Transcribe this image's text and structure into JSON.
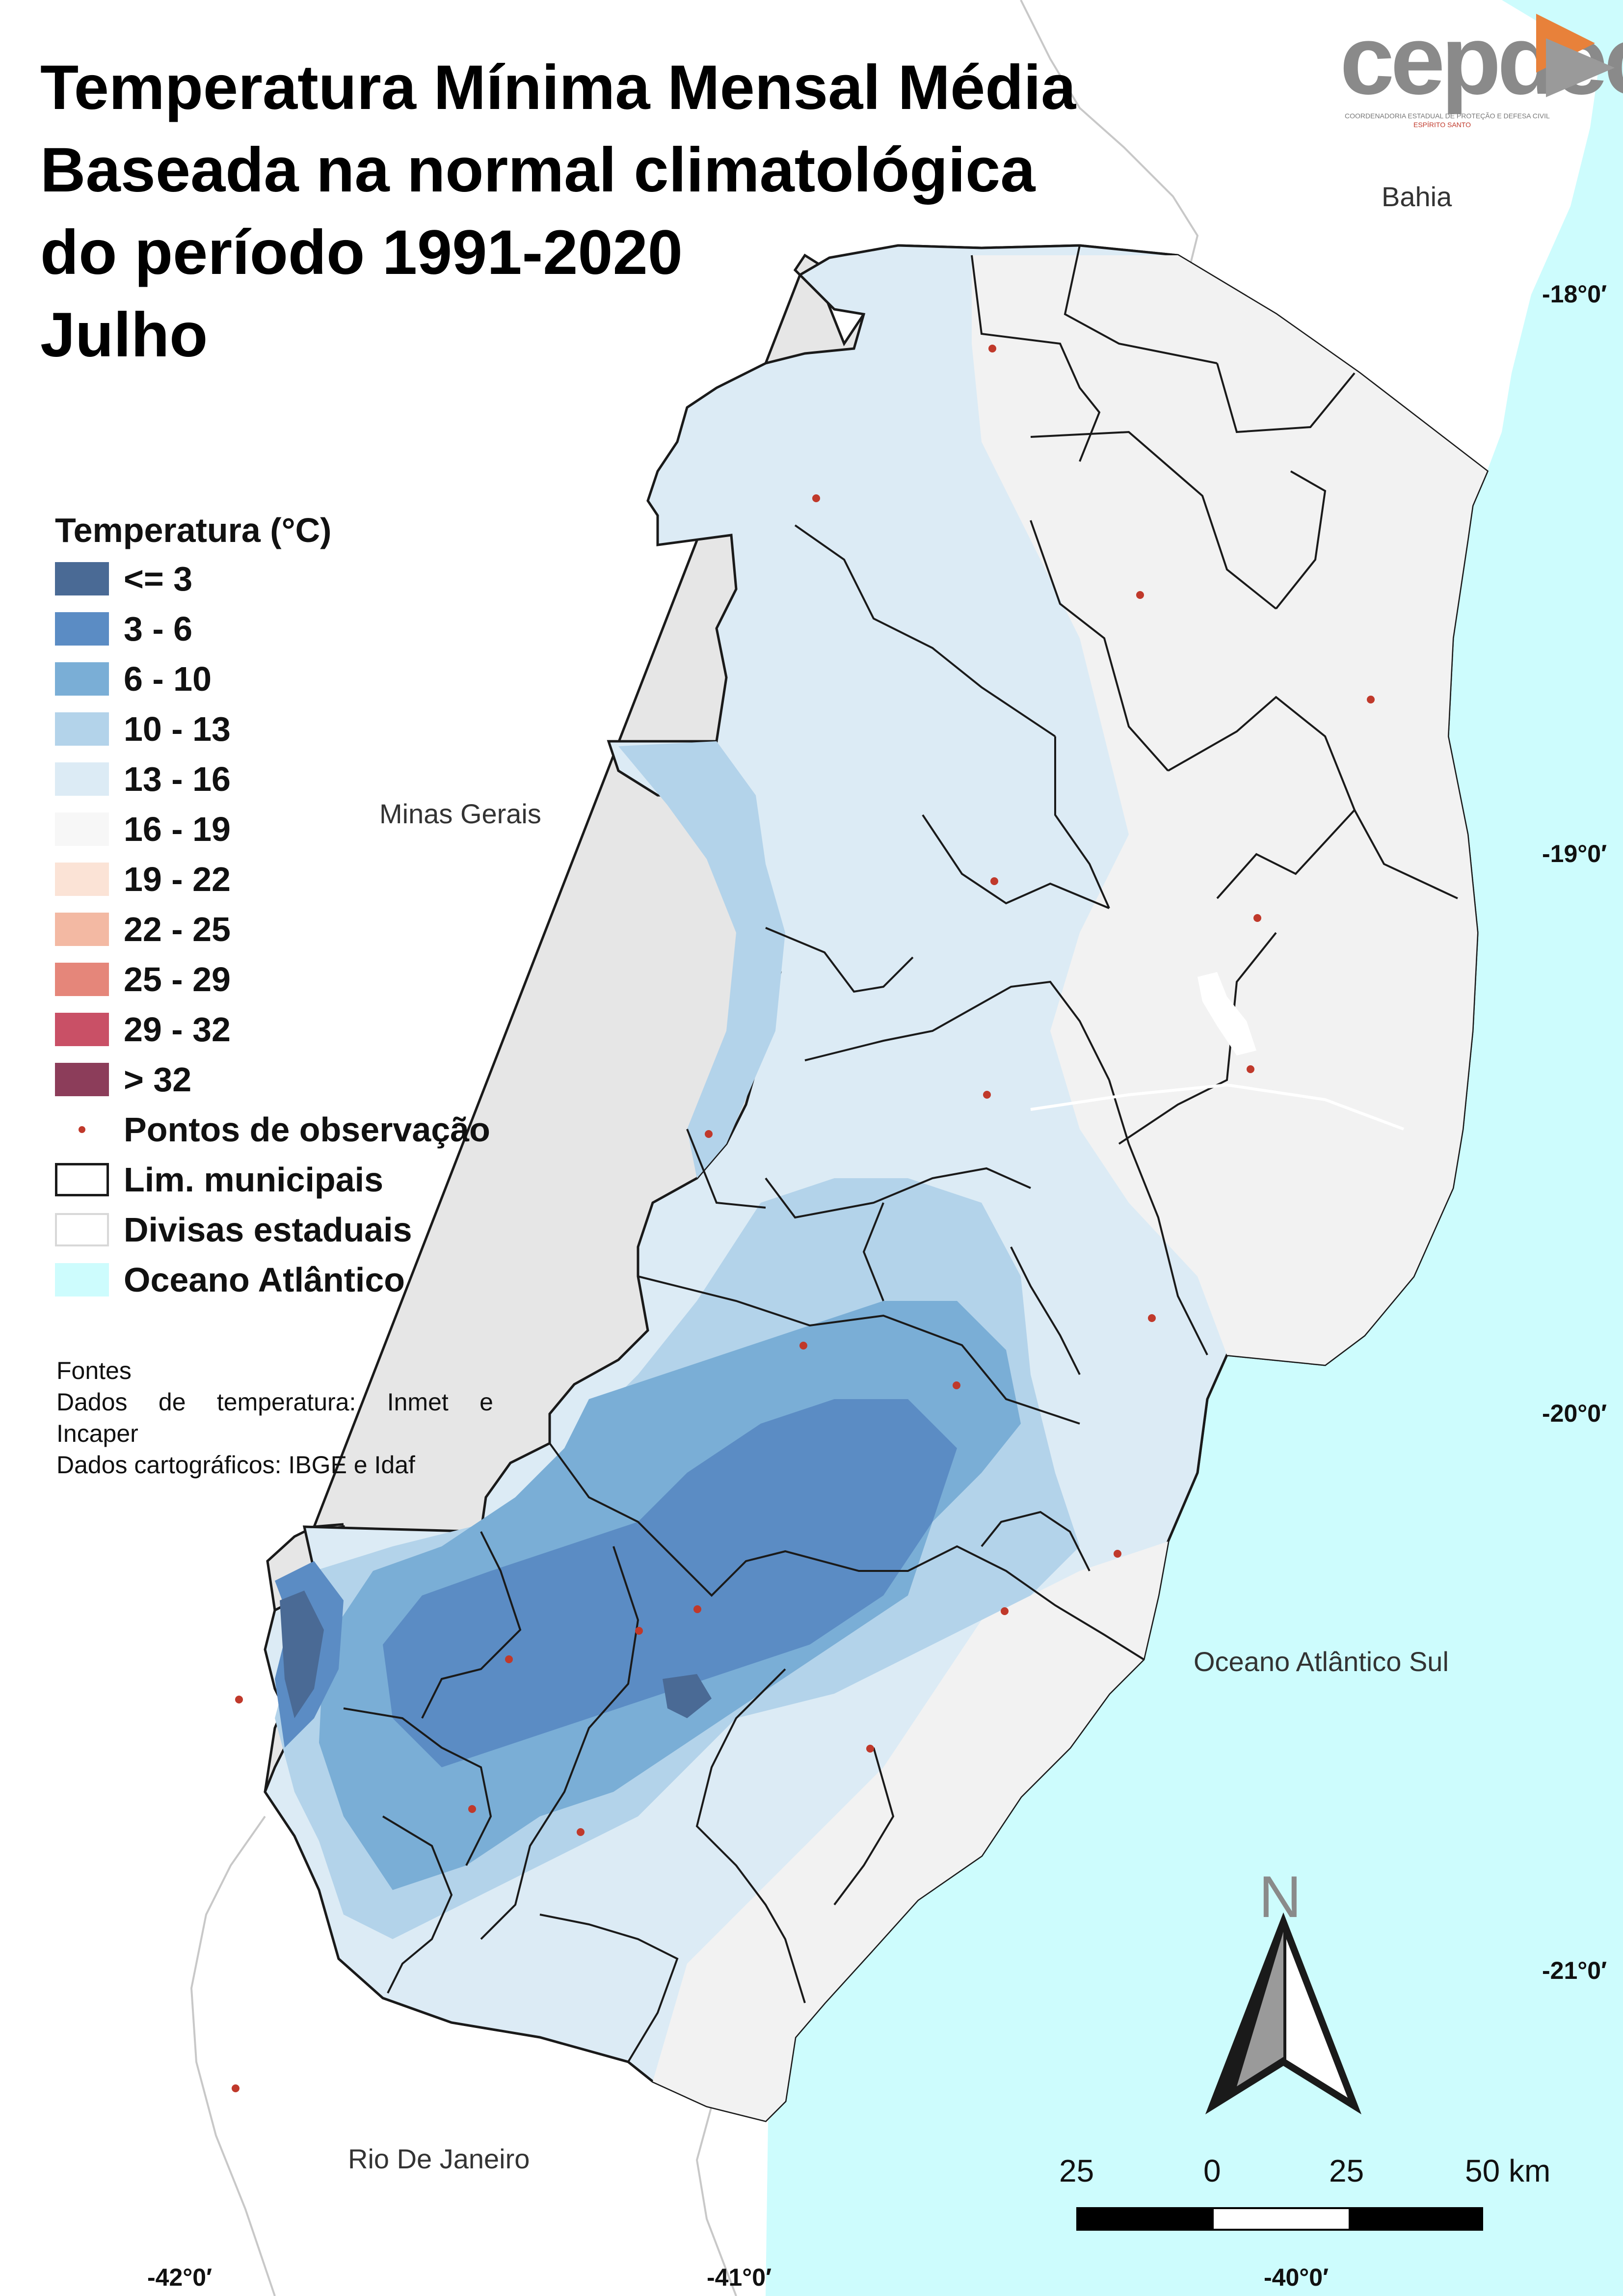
{
  "title": {
    "line1": "Temperatura Mínima Mensal Média",
    "line2": "Baseada na normal climatológica",
    "line3": "do período 1991-2020",
    "line4": "Julho"
  },
  "logo": {
    "text": "cepdec",
    "subtitle": "COORDENADORIA ESTADUAL DE PROTEÇÃO E DEFESA CIVIL",
    "region": "ESPÍRITO SANTO"
  },
  "regions": {
    "bahia": "Bahia",
    "minas_gerais": "Minas Gerais",
    "rio_de_janeiro": "Rio De Janeiro",
    "ocean": "Oceano Atlântico Sul"
  },
  "coordinates": {
    "lat_18": "-18°0′",
    "lat_19": "-19°0′",
    "lat_20": "-20°0′",
    "lat_21": "-21°0′",
    "lon_42": "-42°0′",
    "lon_41": "-41°0′",
    "lon_40": "-40°0′"
  },
  "legend": {
    "title": "Temperatura (°C)",
    "classes": [
      {
        "label": "<= 3",
        "color": "#4a6a95"
      },
      {
        "label": "3 - 6",
        "color": "#5b8cc4"
      },
      {
        "label": "6 - 10",
        "color": "#7aaed6"
      },
      {
        "label": "10 - 13",
        "color": "#b3d3ea"
      },
      {
        "label": "13 - 16",
        "color": "#dcebf5"
      },
      {
        "label": "16 - 19",
        "color": "#f7f7f7"
      },
      {
        "label": "19 - 22",
        "color": "#fbe3d6"
      },
      {
        "label": "22 - 25",
        "color": "#f3b9a3"
      },
      {
        "label": "25 - 29",
        "color": "#e5867a"
      },
      {
        "label": "29 - 32",
        "color": "#c95066"
      },
      {
        "label": "> 32",
        "color": "#8c3d5a"
      }
    ],
    "observation_points": "Pontos de observação",
    "municipal_limits": "Lim. municipais",
    "state_borders": "Divisas estaduais",
    "ocean": "Oceano Atlântico"
  },
  "sources": {
    "heading": "Fontes",
    "temp_words": [
      "Dados",
      "de",
      "temperatura:",
      "Inmet",
      "e"
    ],
    "temp_line2": "Incaper",
    "carto": "Dados cartográficos: IBGE e Idaf"
  },
  "scale": {
    "labels": [
      "25",
      "0",
      "25",
      "50 km"
    ]
  },
  "north": "N",
  "colors": {
    "ocean": "#cdfcfd",
    "land_background": "#e6e6e6",
    "state_border": "#c8c8c8",
    "municipal_border": "#1a1a1a",
    "observation_point": "#c0392b"
  }
}
